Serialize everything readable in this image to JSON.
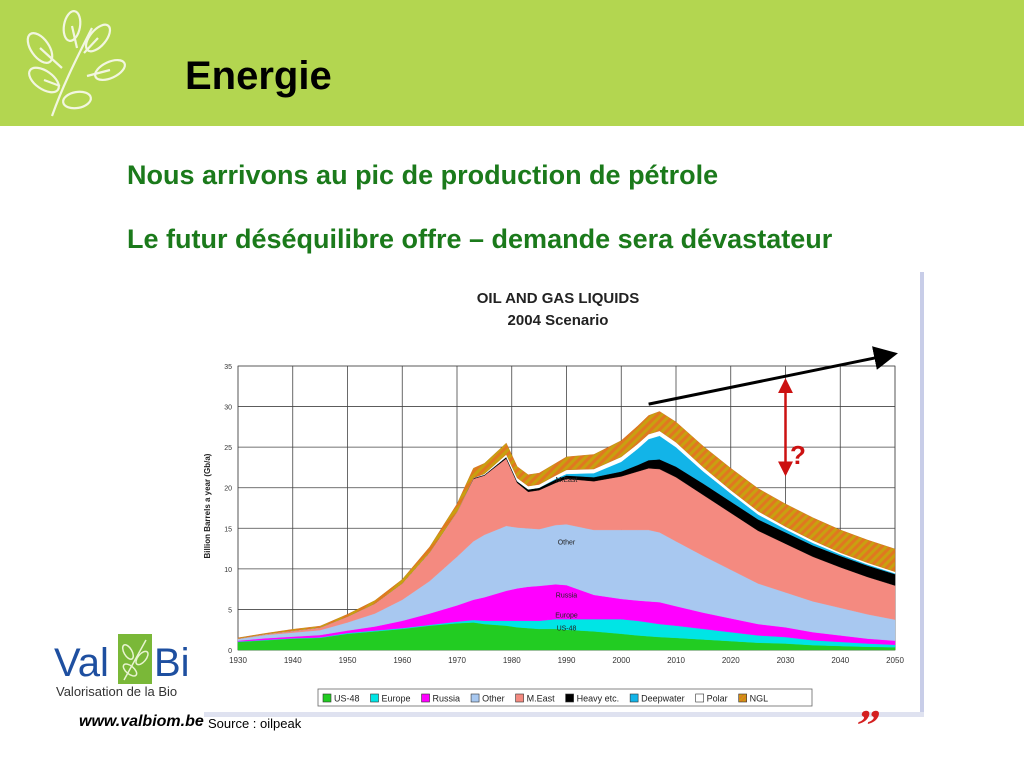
{
  "slide": {
    "title": "Energie",
    "line1": "Nous arrivons au pic de production de pétrole",
    "line2": "Le futur déséquilibre offre – demande sera dévastateur",
    "url": "www.valbiom.be",
    "source": "Source : oilpeak",
    "logo_text": "Val",
    "logo_text_end": "Bi",
    "logo_subtitle": "Valorisation de la Bio",
    "question_mark": "?",
    "quote_mark": "”"
  },
  "colors": {
    "header": "#b3d650",
    "heading_green": "#1b7a1b",
    "arrow_red": "#cc1111"
  },
  "chart_data": {
    "type": "area",
    "title": "OIL AND GAS LIQUIDS",
    "subtitle": "2004 Scenario",
    "ylabel": "Billion Barrels a year (Gb/a)",
    "xlabel": "",
    "xlim": [
      1930,
      2050
    ],
    "ylim": [
      0,
      35
    ],
    "y_ticks": [
      "0",
      "5",
      "10",
      "15",
      "20",
      "25",
      "30",
      "35"
    ],
    "x_ticks": [
      "1930",
      "1940",
      "1950",
      "1960",
      "1970",
      "1980",
      "1990",
      "2000",
      "2010",
      "2020",
      "2030",
      "2040",
      "2050"
    ],
    "grid": true,
    "legend_position": "bottom",
    "x": [
      1930,
      1935,
      1940,
      1945,
      1950,
      1955,
      1960,
      1965,
      1970,
      1973,
      1975,
      1979,
      1981,
      1983,
      1985,
      1988,
      1990,
      1995,
      2000,
      2003,
      2005,
      2007,
      2010,
      2015,
      2020,
      2025,
      2030,
      2035,
      2040,
      2045,
      2050
    ],
    "series": [
      {
        "name": "US-48",
        "color": "#22cc22",
        "values": [
          1.0,
          1.2,
          1.4,
          1.5,
          2.0,
          2.3,
          2.6,
          3.0,
          3.3,
          3.4,
          3.2,
          3.0,
          2.8,
          2.7,
          2.6,
          2.6,
          2.5,
          2.3,
          2.0,
          1.8,
          1.7,
          1.6,
          1.5,
          1.3,
          1.1,
          0.9,
          0.8,
          0.6,
          0.5,
          0.4,
          0.35
        ]
      },
      {
        "name": "Europe",
        "color": "#00e5e5",
        "values": [
          0.05,
          0.05,
          0.05,
          0.05,
          0.1,
          0.1,
          0.1,
          0.1,
          0.2,
          0.3,
          0.4,
          0.6,
          0.8,
          0.9,
          1.0,
          1.2,
          1.3,
          1.5,
          1.8,
          1.8,
          1.7,
          1.6,
          1.5,
          1.3,
          1.1,
          0.9,
          0.8,
          0.6,
          0.5,
          0.4,
          0.3
        ]
      },
      {
        "name": "Russia",
        "color": "#ff00ff",
        "values": [
          0.1,
          0.2,
          0.2,
          0.3,
          0.3,
          0.5,
          0.9,
          1.4,
          2.0,
          2.5,
          2.9,
          3.7,
          4.0,
          4.2,
          4.3,
          4.3,
          4.2,
          3.0,
          2.5,
          2.5,
          2.6,
          2.7,
          2.4,
          2.0,
          1.7,
          1.4,
          1.2,
          1.0,
          0.8,
          0.6,
          0.5
        ]
      },
      {
        "name": "Other",
        "color": "#a8c8f0",
        "values": [
          0.2,
          0.4,
          0.5,
          0.6,
          1.0,
          1.6,
          2.6,
          4.0,
          6.0,
          7.2,
          7.7,
          8.0,
          7.5,
          7.2,
          7.0,
          7.3,
          7.5,
          8.0,
          8.5,
          8.7,
          8.8,
          8.6,
          8.0,
          7.0,
          6.0,
          5.0,
          4.3,
          3.8,
          3.4,
          3.0,
          2.6
        ]
      },
      {
        "name": "M.East",
        "color": "#f48a80",
        "values": [
          0.05,
          0.1,
          0.2,
          0.3,
          0.7,
          1.2,
          2.0,
          3.5,
          5.5,
          7.7,
          7.3,
          8.3,
          5.5,
          4.5,
          4.8,
          5.2,
          5.6,
          6.0,
          6.6,
          7.2,
          7.6,
          7.8,
          7.9,
          7.5,
          7.0,
          6.5,
          6.0,
          5.5,
          5.0,
          4.6,
          4.2
        ]
      },
      {
        "name": "Heavy etc.",
        "color": "#000000",
        "values": [
          0,
          0,
          0,
          0,
          0,
          0,
          0,
          0,
          0,
          0.1,
          0.1,
          0.2,
          0.2,
          0.3,
          0.3,
          0.4,
          0.4,
          0.5,
          0.6,
          0.8,
          1.0,
          1.2,
          1.3,
          1.4,
          1.4,
          1.4,
          1.4,
          1.4,
          1.4,
          1.4,
          1.4
        ]
      },
      {
        "name": "Deepwater",
        "color": "#12b4e8",
        "values": [
          0,
          0,
          0,
          0,
          0,
          0,
          0,
          0,
          0,
          0,
          0,
          0,
          0,
          0,
          0,
          0.1,
          0.2,
          0.5,
          1.2,
          2.0,
          2.6,
          2.9,
          2.4,
          1.5,
          1.0,
          0.6,
          0.4,
          0.3,
          0.2,
          0.15,
          0.1
        ]
      },
      {
        "name": "Polar",
        "color": "#ffffff",
        "values": [
          0,
          0,
          0,
          0,
          0,
          0,
          0,
          0,
          0,
          0,
          0.1,
          0.3,
          0.4,
          0.4,
          0.4,
          0.4,
          0.5,
          0.5,
          0.6,
          0.6,
          0.6,
          0.6,
          0.6,
          0.5,
          0.4,
          0.4,
          0.3,
          0.3,
          0.2,
          0.2,
          0.2
        ]
      },
      {
        "name": "NGL",
        "color": "#e07820",
        "values": [
          0.1,
          0.1,
          0.2,
          0.2,
          0.3,
          0.4,
          0.5,
          0.7,
          1.0,
          1.2,
          1.3,
          1.4,
          1.4,
          1.4,
          1.4,
          1.5,
          1.6,
          1.8,
          2.0,
          2.2,
          2.3,
          2.4,
          2.5,
          2.6,
          2.7,
          2.8,
          2.8,
          2.8,
          2.8,
          2.8,
          2.8
        ]
      }
    ],
    "annotations": [
      {
        "text": "M.East",
        "x": 1990,
        "y": 20.7
      },
      {
        "text": "Other",
        "x": 1990,
        "y": 13
      },
      {
        "text": "Russia",
        "x": 1990,
        "y": 6.5
      },
      {
        "text": "Europe",
        "x": 1990,
        "y": 4.0
      },
      {
        "text": "US-48",
        "x": 1990,
        "y": 2.4
      }
    ],
    "arrow_line": {
      "from": [
        2005,
        30.3
      ],
      "to": [
        2050,
        36.5
      ]
    },
    "gap_arrow": {
      "x": 2030,
      "y_top": 33.2,
      "y_bottom": 21.7
    }
  }
}
